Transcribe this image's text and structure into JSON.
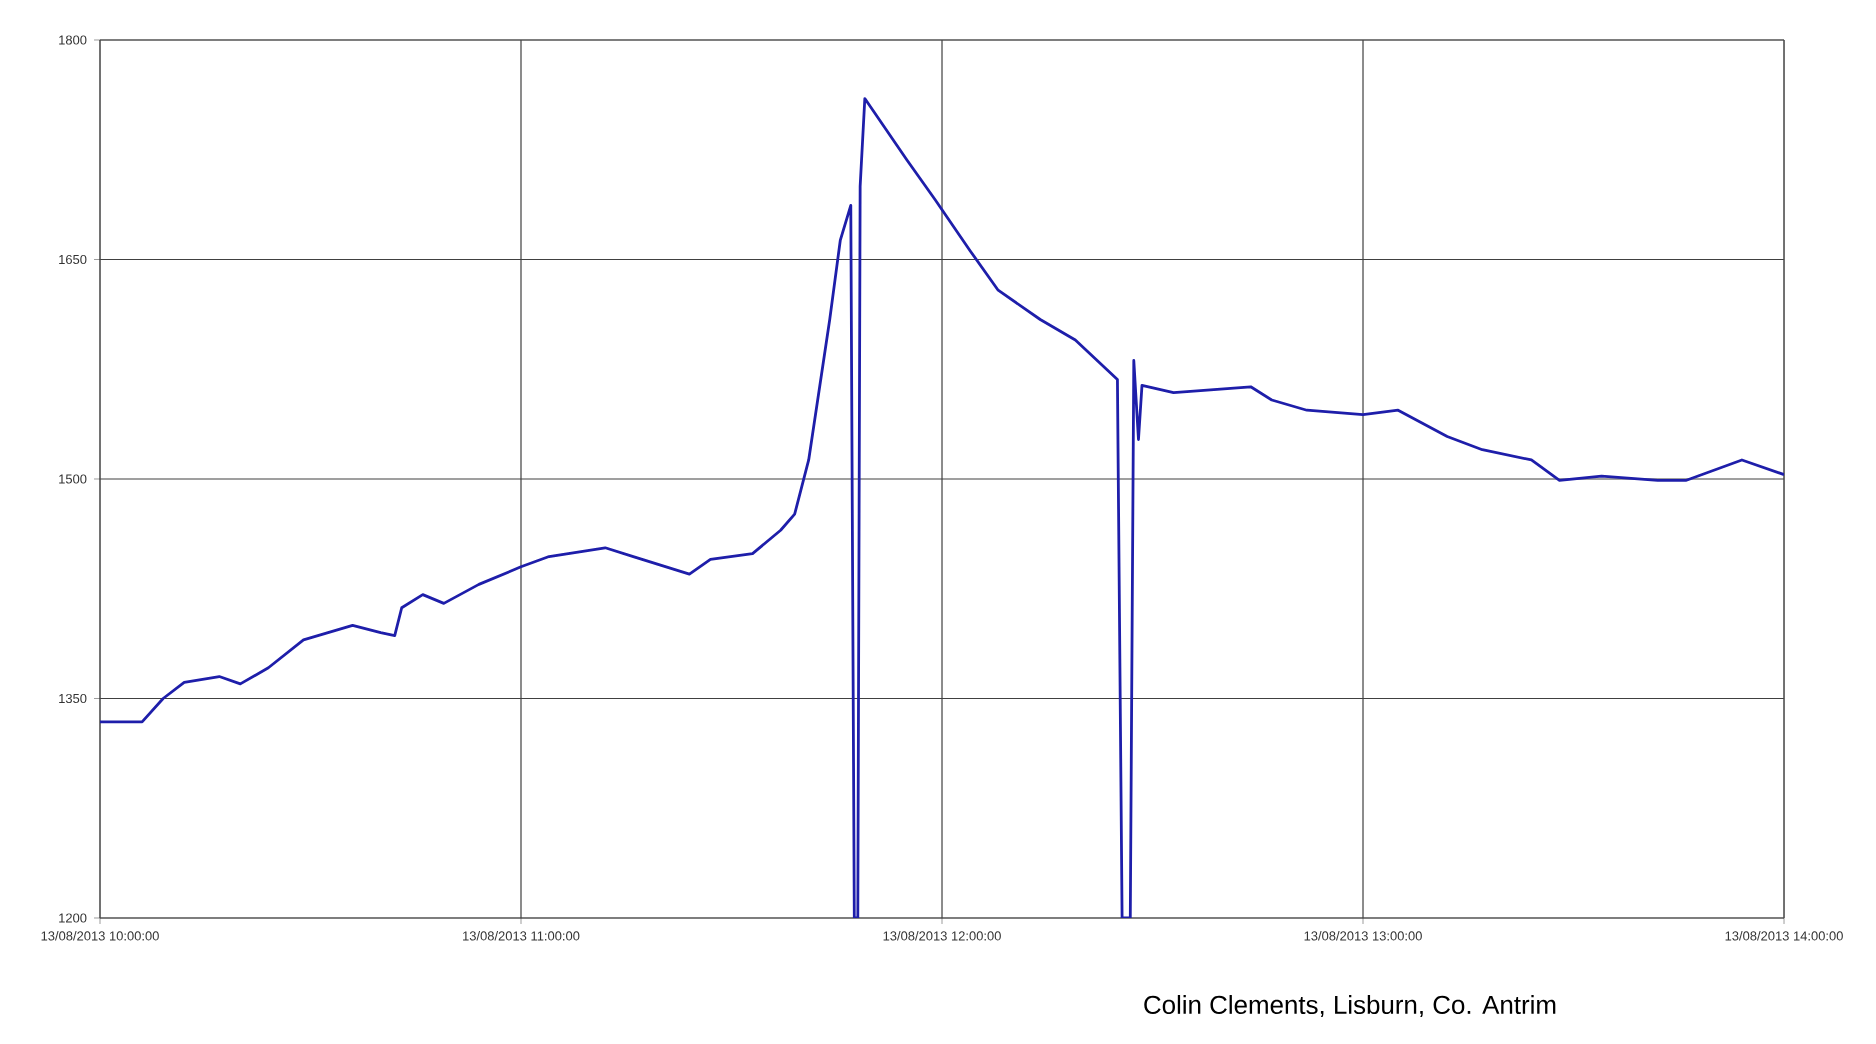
{
  "chart_data": {
    "type": "line",
    "x": [
      "2013-08-13T10:00",
      "2013-08-13T10:06",
      "2013-08-13T10:09",
      "2013-08-13T10:12",
      "2013-08-13T10:17",
      "2013-08-13T10:20",
      "2013-08-13T10:24",
      "2013-08-13T10:29",
      "2013-08-13T10:36",
      "2013-08-13T10:40",
      "2013-08-13T10:42",
      "2013-08-13T10:43",
      "2013-08-13T10:46",
      "2013-08-13T10:49",
      "2013-08-13T10:54",
      "2013-08-13T11:00",
      "2013-08-13T11:04",
      "2013-08-13T11:12",
      "2013-08-13T11:16",
      "2013-08-13T11:24",
      "2013-08-13T11:27",
      "2013-08-13T11:33",
      "2013-08-13T11:37",
      "2013-08-13T11:39",
      "2013-08-13T11:41",
      "2013-08-13T11:44",
      "2013-08-13T11:45:30",
      "2013-08-13T11:47",
      "2013-08-13T11:47:30",
      "2013-08-13T11:48",
      "2013-08-13T11:48:20",
      "2013-08-13T11:49",
      "2013-08-13T11:55",
      "2013-08-13T11:59",
      "2013-08-13T12:00",
      "2013-08-13T12:04",
      "2013-08-13T12:08",
      "2013-08-13T12:14",
      "2013-08-13T12:19",
      "2013-08-13T12:25",
      "2013-08-13T12:25:40",
      "2013-08-13T12:26:50",
      "2013-08-13T12:27:20",
      "2013-08-13T12:28",
      "2013-08-13T12:28:30",
      "2013-08-13T12:33",
      "2013-08-13T12:44",
      "2013-08-13T12:47",
      "2013-08-13T12:52",
      "2013-08-13T13:00",
      "2013-08-13T13:05",
      "2013-08-13T13:12",
      "2013-08-13T13:17",
      "2013-08-13T13:24",
      "2013-08-13T13:28",
      "2013-08-13T13:34",
      "2013-08-13T13:42",
      "2013-08-13T13:46",
      "2013-08-13T13:54",
      "2013-08-13T14:00"
    ],
    "series": [
      {
        "color": "#1e1eaa",
        "values": [
          1334,
          1334,
          1350,
          1361,
          1365,
          1360,
          1371,
          1390,
          1400,
          1395,
          1393,
          1412,
          1421,
          1415,
          1428,
          1440,
          1447,
          1453,
          1447,
          1435,
          1445,
          1449,
          1465,
          1476,
          1513,
          1609,
          1663,
          1687,
          1200,
          1200,
          1700,
          1760,
          1718,
          1691,
          1684,
          1656,
          1629,
          1609,
          1595,
          1568,
          1200,
          1200,
          1581,
          1527,
          1564,
          1559,
          1563,
          1554,
          1547,
          1544,
          1547,
          1529,
          1520,
          1513,
          1499,
          1502,
          1499,
          1499,
          1513,
          1503
        ]
      }
    ],
    "xlim": [
      "2013-08-13T10:00",
      "2013-08-13T14:00"
    ],
    "ylim": [
      1200,
      1800
    ],
    "xticks": [
      {
        "value": "2013-08-13T10:00",
        "label": "13/08/2013 10:00:00"
      },
      {
        "value": "2013-08-13T11:00",
        "label": "13/08/2013 11:00:00"
      },
      {
        "value": "2013-08-13T12:00",
        "label": "13/08/2013 12:00:00"
      },
      {
        "value": "2013-08-13T13:00",
        "label": "13/08/2013 13:00:00"
      },
      {
        "value": "2013-08-13T14:00",
        "label": "13/08/2013 14:00:00"
      }
    ],
    "yticks": [
      1200,
      1350,
      1500,
      1650,
      1800
    ],
    "grid": true,
    "annotations": [
      "Colin Clements, Lisburn, Co. Antrim"
    ]
  }
}
